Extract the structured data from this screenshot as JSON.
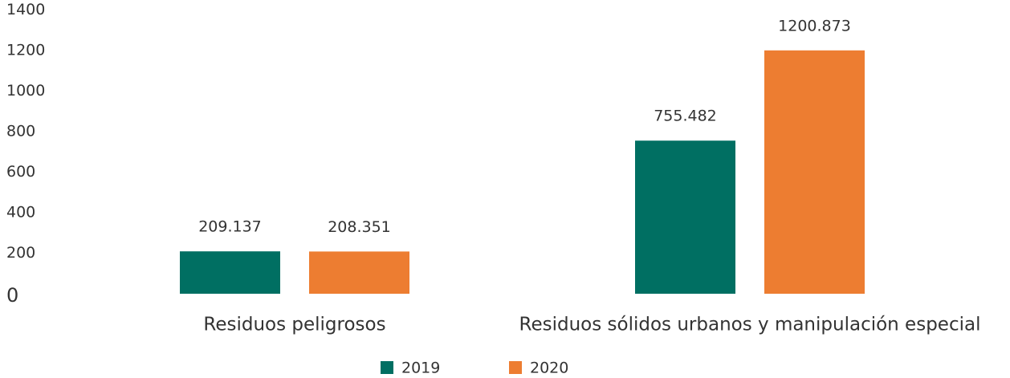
{
  "chart_data": {
    "type": "bar",
    "categories": [
      "Residuos peligrosos",
      "Residuos sólidos urbanos y manipulación especial"
    ],
    "series": [
      {
        "name": "2019",
        "color": "#006f62",
        "values": [
          209.137,
          755.482
        ]
      },
      {
        "name": "2020",
        "color": "#ed7d31",
        "values": [
          208.351,
          1200.873
        ]
      }
    ],
    "ylim": [
      0,
      1400
    ],
    "yticks": [
      0,
      200,
      400,
      600,
      800,
      1000,
      1200,
      1400
    ],
    "grid": false,
    "legend": "bottom"
  }
}
